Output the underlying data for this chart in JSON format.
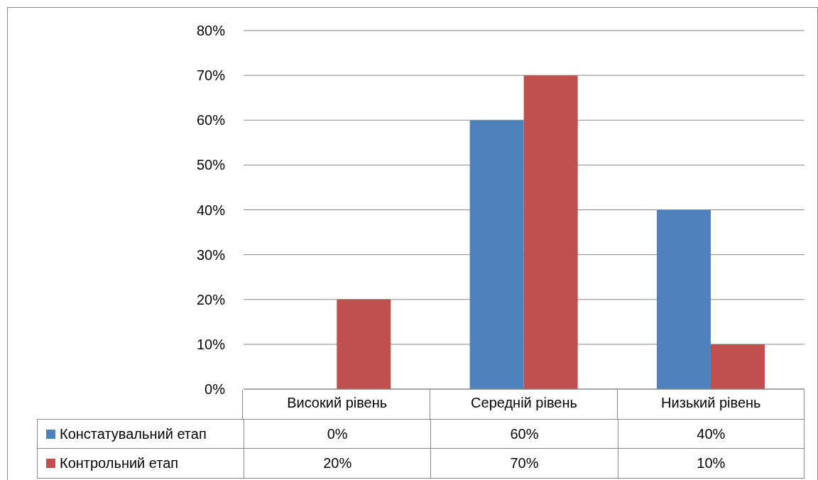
{
  "chart_data": {
    "type": "bar",
    "categories": [
      "Високий рівень",
      "Середній рівень",
      "Низький рівень"
    ],
    "series": [
      {
        "name": "Констатувальний етап",
        "color": "#4f81bd",
        "values": [
          0,
          60,
          40
        ],
        "value_labels": [
          "0%",
          "60%",
          "40%"
        ]
      },
      {
        "name": "Контрольний етап",
        "color": "#c0504d",
        "values": [
          20,
          70,
          10
        ],
        "value_labels": [
          "20%",
          "70%",
          "10%"
        ]
      }
    ],
    "ylim": [
      0,
      80
    ],
    "yticks": [
      {
        "value": 0,
        "label": "0%"
      },
      {
        "value": 10,
        "label": "10%"
      },
      {
        "value": 20,
        "label": "20%"
      },
      {
        "value": 30,
        "label": "30%"
      },
      {
        "value": 40,
        "label": "40%"
      },
      {
        "value": 50,
        "label": "50%"
      },
      {
        "value": 60,
        "label": "60%"
      },
      {
        "value": 70,
        "label": "70%"
      },
      {
        "value": 80,
        "label": "80%"
      }
    ],
    "grid": "y",
    "legend": "bottom"
  }
}
